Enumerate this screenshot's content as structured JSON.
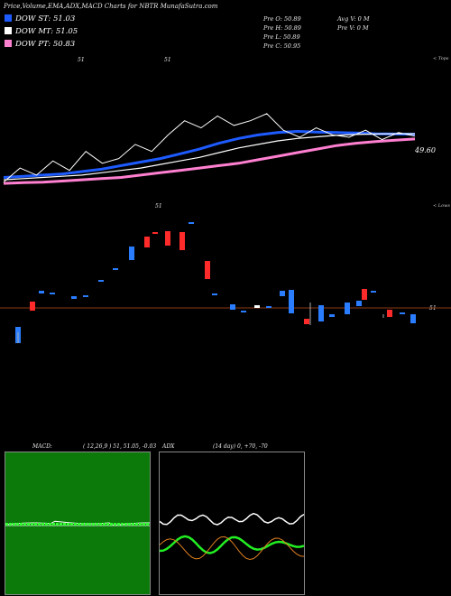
{
  "header": {
    "title": "Price,Volume,EMA,ADX,MACD Charts for NBTR MunafaSutra.com"
  },
  "legend": [
    {
      "label": "DOW ST: 51.03",
      "color": "#1e5bff"
    },
    {
      "label": "DOW MT: 51.05",
      "color": "#ffffff"
    },
    {
      "label": "DOW PT: 50.83",
      "color": "#ff7fd0"
    }
  ],
  "quote": {
    "open": "Pre  O: 50.89",
    "high": "Pre  H: 50.89",
    "low": "Pre  L: 50.89",
    "close": "Pre  C: 50.95",
    "avg_vol": "Avg V: 0  M",
    "pre_vol": "Pre  V: 0  M"
  },
  "labels": {
    "tops": "< Tops",
    "lows": "< Lows",
    "price_mark_1": "51",
    "price_mark_2": "51",
    "price_mark_3": "51",
    "last_price": "49.60",
    "cur_price": "51"
  },
  "macd_panel": {
    "label": "MACD:",
    "params": "( 12,26,9 ) 51, 51.05, -0.03"
  },
  "adx_panel": {
    "label": "ADX",
    "params": "(14  day) 0, +70, -70"
  },
  "colors": {
    "bull": "#ff2a2a",
    "bear": "#2a7dff",
    "ema_st": "#1e5bff",
    "ema_pt": "#ff7fd0",
    "ref_line": "#8a3a12"
  },
  "chart_data": {
    "type": "line",
    "series": [
      {
        "name": "DOW ST",
        "values": [
          49.2,
          49.25,
          49.3,
          49.35,
          49.45,
          49.55,
          49.7,
          49.85,
          50.0,
          50.2,
          50.4,
          50.65,
          50.85,
          51.0,
          51.1,
          51.15,
          51.12,
          51.1,
          51.08,
          51.05,
          51.04,
          51.03
        ]
      },
      {
        "name": "DOW MT",
        "values": [
          49.1,
          49.15,
          49.2,
          49.25,
          49.3,
          49.4,
          49.5,
          49.6,
          49.75,
          49.9,
          50.05,
          50.25,
          50.45,
          50.6,
          50.75,
          50.85,
          50.92,
          50.98,
          51.02,
          51.04,
          51.05,
          51.05
        ]
      },
      {
        "name": "DOW PT",
        "values": [
          48.95,
          48.98,
          49.0,
          49.05,
          49.1,
          49.15,
          49.2,
          49.3,
          49.4,
          49.5,
          49.6,
          49.7,
          49.8,
          49.95,
          50.1,
          50.25,
          50.4,
          50.55,
          50.65,
          50.72,
          50.78,
          50.83
        ]
      }
    ],
    "price": [
      49.0,
      49.6,
      49.3,
      49.9,
      49.5,
      50.3,
      49.8,
      50.0,
      50.6,
      50.3,
      51.0,
      51.6,
      51.3,
      51.8,
      51.4,
      51.6,
      51.9,
      51.2,
      50.9,
      51.3,
      51.0,
      50.9,
      51.2,
      50.8,
      51.1,
      50.95
    ]
  }
}
